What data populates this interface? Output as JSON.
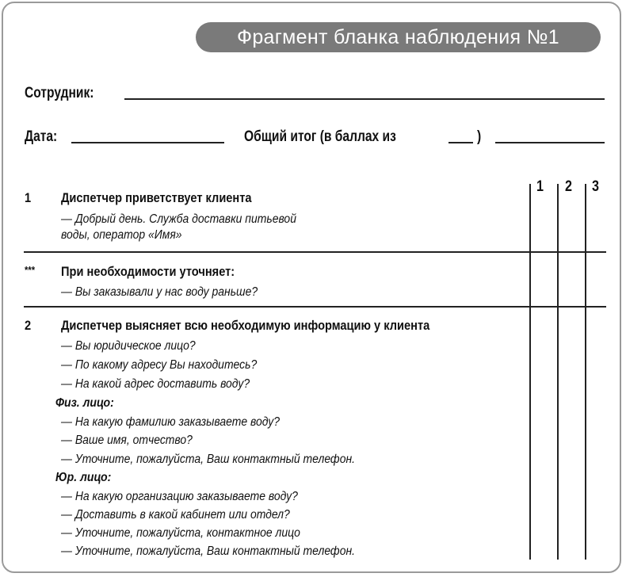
{
  "title": "Фрагмент бланка наблюдения №1",
  "header": {
    "employee_label": "Сотрудник:",
    "date_label": "Дата:",
    "total_label": "Общий итог (в баллах из",
    "total_close": ")"
  },
  "columns": [
    "1",
    "2",
    "3"
  ],
  "sections": [
    {
      "number": "1",
      "heading": "Диспетчер приветствует клиента",
      "lines": [
        "— Добрый день. Служба доставки питьевой",
        "воды, оператор «Имя»"
      ]
    },
    {
      "number": "***",
      "heading": "При необходимости уточняет:",
      "lines": [
        "— Вы заказывали у нас воду раньше?"
      ]
    },
    {
      "number": "2",
      "heading": "Диспетчер выясняет всю необходимую информацию у клиента",
      "lines": [
        "— Вы юридическое лицо?",
        "— По какому адресу Вы находитесь?",
        "— На какой адрес доставить воду?"
      ],
      "physical_label": "Физ. лицо:",
      "physical_lines": [
        "— На какую фамилию заказываете воду?",
        "— Ваше имя, отчество?",
        "— Уточните, пожалуйста, Ваш контактный телефон."
      ],
      "legal_label": "Юр. лицо:",
      "legal_lines": [
        "— На какую организацию заказываете воду?",
        "— Доставить в какой кабинет или отдел?",
        "— Уточните, пожалуйста, контактное лицо",
        "— Уточните, пожалуйста, Ваш контактный телефон."
      ]
    }
  ]
}
